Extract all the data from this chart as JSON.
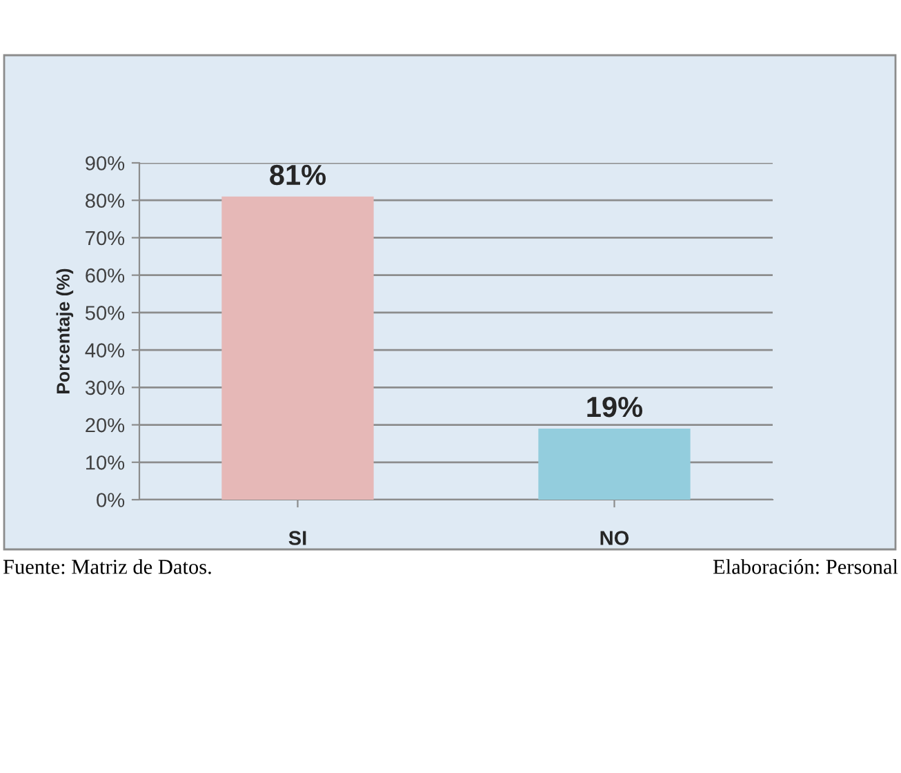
{
  "chart_data": {
    "type": "bar",
    "ylabel": "Porcentaje (%)",
    "categories": [
      "SI",
      "NO"
    ],
    "values": [
      81,
      19
    ],
    "colors": [
      "#e6b8b7",
      "#93cddd"
    ],
    "value_labels": [
      "81%",
      "19%"
    ],
    "ylim": [
      0,
      90
    ],
    "yticks": [
      {
        "value": 0,
        "label": "0%"
      },
      {
        "value": 10,
        "label": "10%"
      },
      {
        "value": 20,
        "label": "20%"
      },
      {
        "value": 30,
        "label": "30%"
      },
      {
        "value": 40,
        "label": "40%"
      },
      {
        "value": 50,
        "label": "50%"
      },
      {
        "value": 60,
        "label": "60%"
      },
      {
        "value": 70,
        "label": "70%"
      },
      {
        "value": 80,
        "label": "80%"
      },
      {
        "value": 90,
        "label": "90%"
      }
    ],
    "grid": "y",
    "annotations": [
      "Fuente: Matriz de Datos.",
      "Elaboración: Personal"
    ]
  }
}
